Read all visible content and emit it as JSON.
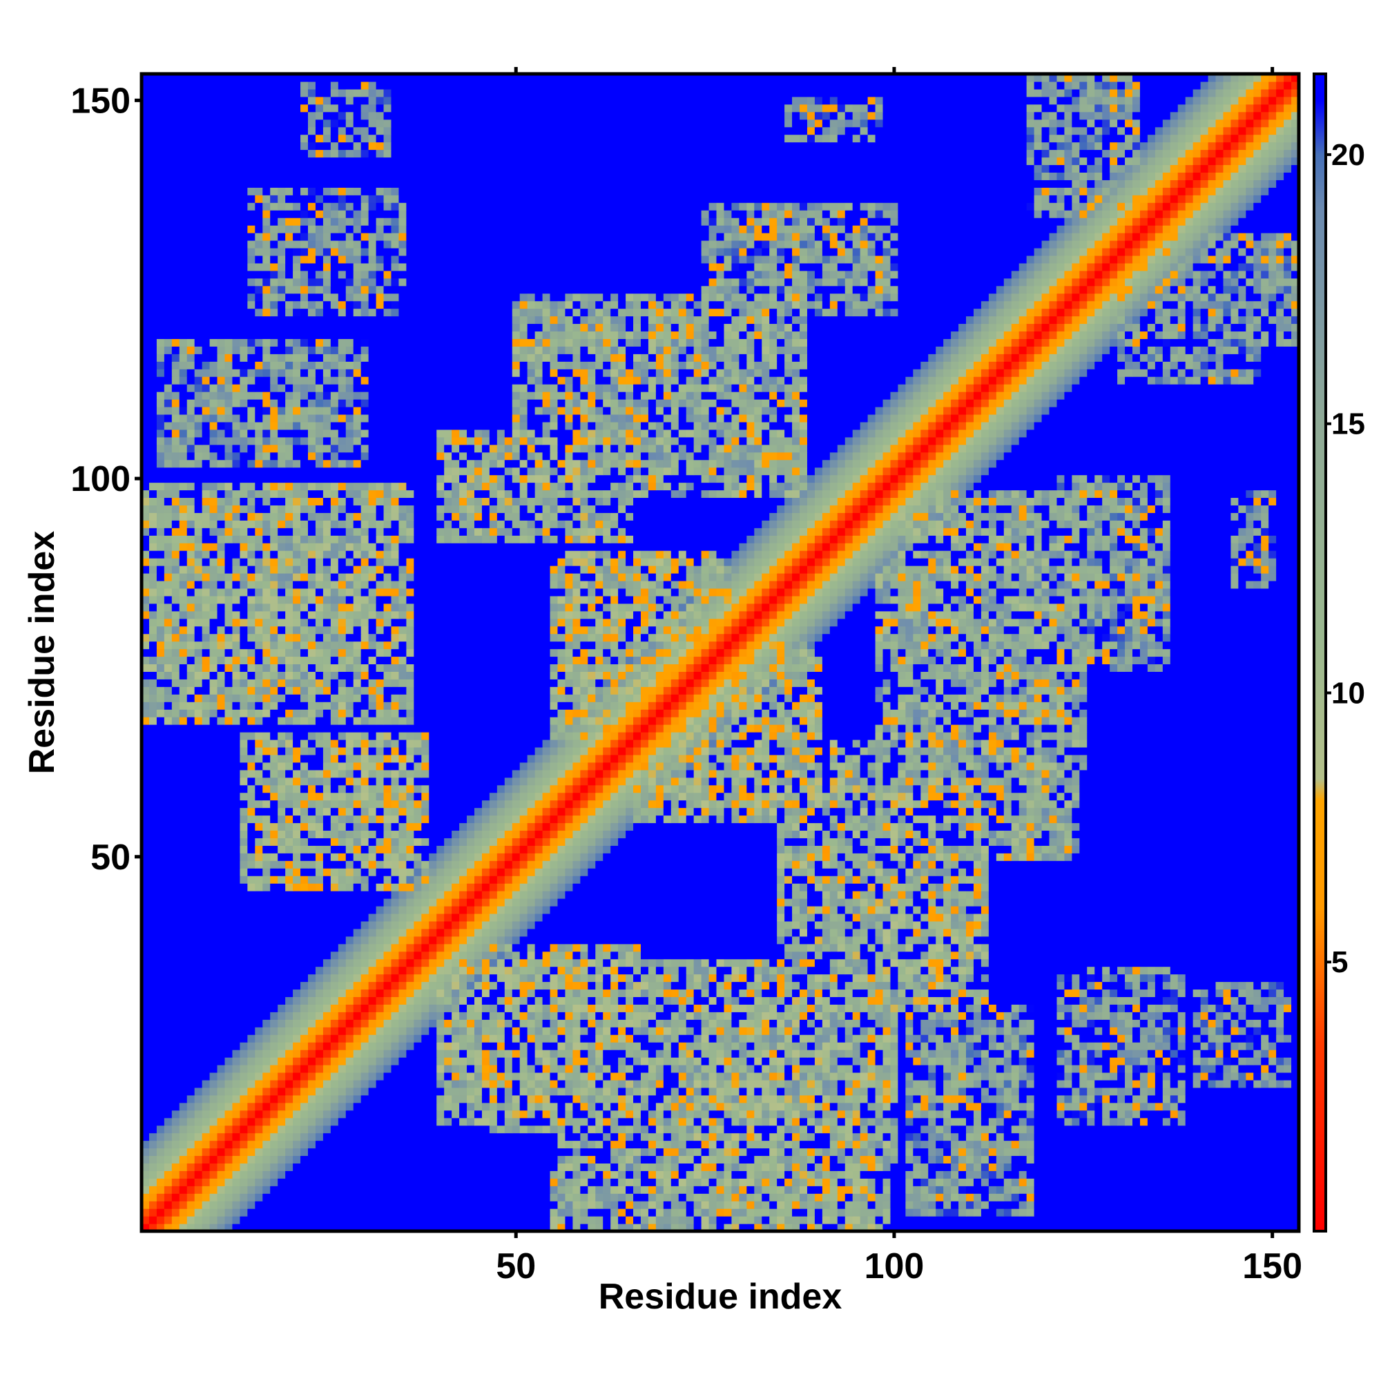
{
  "chart_data": {
    "type": "heatmap",
    "title": "",
    "xlabel": "Residue index",
    "ylabel": "Residue index",
    "xlim": [
      1,
      153
    ],
    "ylim": [
      1,
      153
    ],
    "n_residues": 153,
    "x_ticks": [
      50,
      100,
      150
    ],
    "y_ticks": [
      50,
      100,
      150
    ],
    "x_tick_labels": [
      "50",
      "100",
      "150"
    ],
    "y_tick_labels": [
      "50",
      "100",
      "150"
    ],
    "colorbar": {
      "range": [
        0,
        21.5
      ],
      "ticks": [
        5,
        10,
        15,
        20
      ],
      "tick_labels": [
        "5",
        "10",
        "15",
        "20"
      ],
      "stops": [
        {
          "value": 0,
          "color": "#ff0000"
        },
        {
          "value": 3.5,
          "color": "#ff3c00"
        },
        {
          "value": 6.0,
          "color": "#ff9900"
        },
        {
          "value": 8.0,
          "color": "#ffa500"
        },
        {
          "value": 8.4,
          "color": "#b4c08a"
        },
        {
          "value": 11.0,
          "color": "#9bb88f"
        },
        {
          "value": 15.0,
          "color": "#8faa96"
        },
        {
          "value": 19.0,
          "color": "#6b8ab0"
        },
        {
          "value": 20.0,
          "color": "#4670b8"
        },
        {
          "value": 21.0,
          "color": "#0000ff"
        }
      ]
    },
    "diagonal_band": {
      "description": "contact distance rises with sequence separation |i-j|",
      "values_by_separation": [
        0,
        2.5,
        4.2,
        6.0,
        7.5,
        9.5,
        11.0,
        12.5,
        14.5,
        16.5,
        18.0,
        19.5,
        21.0
      ]
    },
    "contact_blocks": [
      {
        "i": [
          1,
          36
        ],
        "j": [
          68,
          99
        ],
        "value": 14
      },
      {
        "i": [
          14,
          38
        ],
        "j": [
          46,
          66
        ],
        "value": 13
      },
      {
        "i": [
          3,
          30
        ],
        "j": [
          102,
          118
        ],
        "value": 17
      },
      {
        "i": [
          15,
          35
        ],
        "j": [
          122,
          138
        ],
        "value": 18
      },
      {
        "i": [
          22,
          33
        ],
        "j": [
          143,
          152
        ],
        "value": 19
      },
      {
        "i": [
          40,
          65
        ],
        "j": [
          92,
          106
        ],
        "value": 14
      },
      {
        "i": [
          50,
          88
        ],
        "j": [
          98,
          124
        ],
        "value": 15
      },
      {
        "i": [
          55,
          78
        ],
        "j": [
          66,
          90
        ],
        "value": 13
      },
      {
        "i": [
          75,
          100
        ],
        "j": [
          122,
          136
        ],
        "value": 17
      },
      {
        "i": [
          86,
          98
        ],
        "j": [
          145,
          150
        ],
        "value": 19
      },
      {
        "i": [
          40,
          70
        ],
        "j": [
          15,
          36
        ],
        "value": 14
      },
      {
        "i": [
          55,
          82
        ],
        "j": [
          1,
          18
        ],
        "value": 15
      },
      {
        "i": [
          80,
          100
        ],
        "j": [
          10,
          30
        ],
        "value": 15
      },
      {
        "i": [
          85,
          112
        ],
        "j": [
          30,
          58
        ],
        "value": 14
      },
      {
        "i": [
          100,
          125
        ],
        "j": [
          62,
          98
        ],
        "value": 15
      },
      {
        "i": [
          118,
          132
        ],
        "j": [
          135,
          154
        ],
        "value": 18
      },
      {
        "i": [
          130,
          148
        ],
        "j": [
          113,
          130
        ],
        "value": 18
      },
      {
        "i": [
          122,
          133
        ],
        "j": [
          20,
          34
        ],
        "value": 19
      },
      {
        "i": [
          140,
          152
        ],
        "j": [
          20,
          32
        ],
        "value": 19
      }
    ]
  }
}
